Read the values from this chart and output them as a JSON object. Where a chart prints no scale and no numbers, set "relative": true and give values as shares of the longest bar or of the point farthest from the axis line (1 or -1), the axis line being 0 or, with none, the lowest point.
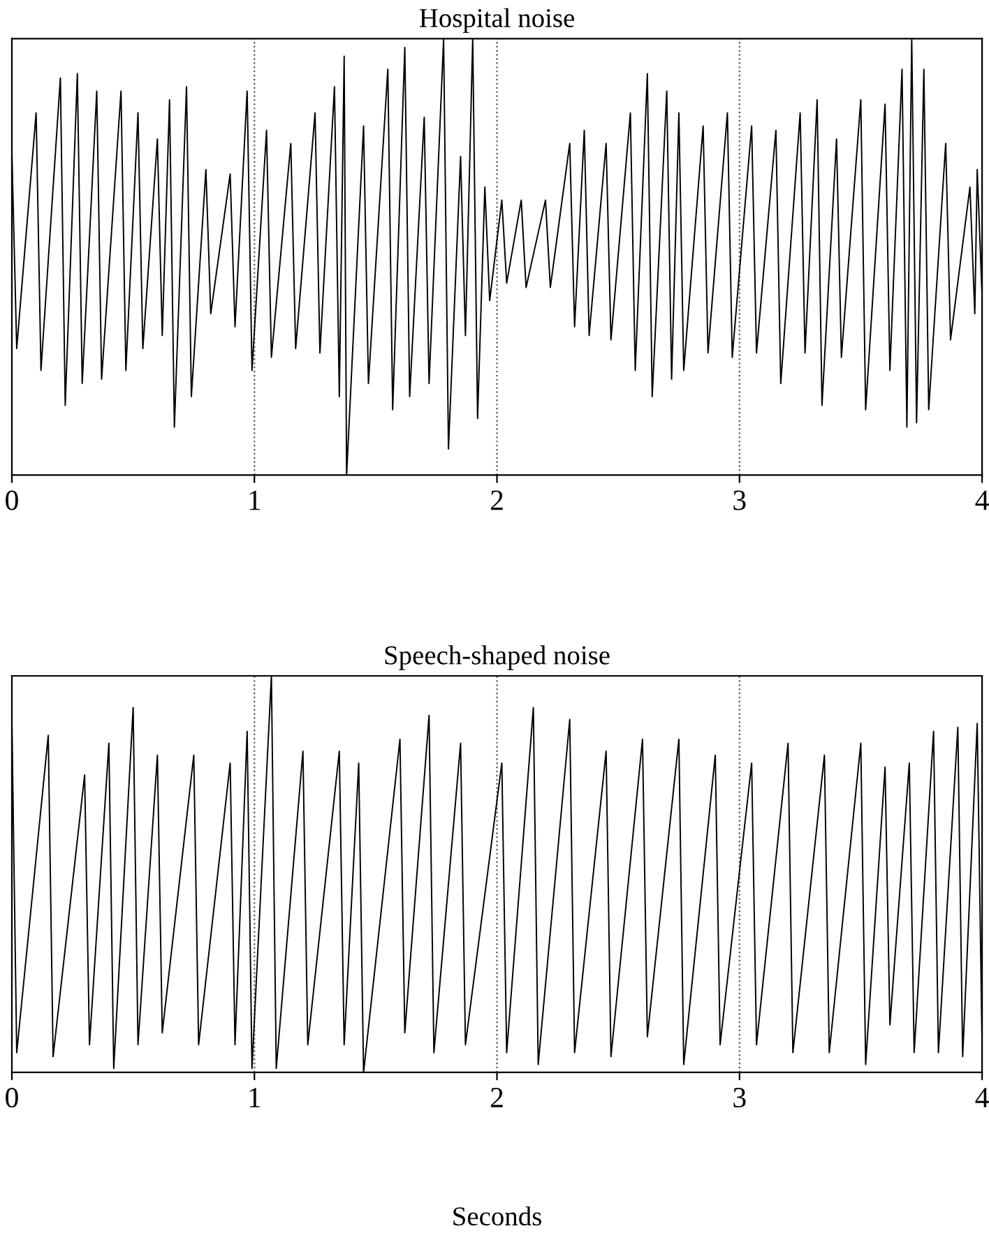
{
  "chart_data": [
    {
      "type": "line",
      "title": "Hospital noise",
      "relative": true,
      "xlim": [
        0,
        4
      ],
      "xticks": [
        0,
        1,
        2,
        3,
        4
      ],
      "grid": false,
      "tick_labels": "x",
      "line_style": "solid",
      "ref_lines": [
        {
          "axis": "x",
          "value": 1,
          "line_style": "dotted"
        },
        {
          "axis": "x",
          "value": 2,
          "line_style": "dotted"
        },
        {
          "axis": "x",
          "value": 3,
          "line_style": "dotted"
        }
      ],
      "series": [
        {
          "color": "#000000",
          "x": [
            0.0,
            0.02,
            0.1,
            0.12,
            0.2,
            0.22,
            0.27,
            0.29,
            0.35,
            0.37,
            0.45,
            0.47,
            0.52,
            0.54,
            0.6,
            0.62,
            0.65,
            0.67,
            0.72,
            0.74,
            0.8,
            0.82,
            0.9,
            0.92,
            0.97,
            0.99,
            1.05,
            1.07,
            1.15,
            1.17,
            1.25,
            1.27,
            1.33,
            1.35,
            1.37,
            1.38,
            1.45,
            1.47,
            1.55,
            1.57,
            1.62,
            1.64,
            1.7,
            1.72,
            1.78,
            1.8,
            1.85,
            1.87,
            1.9,
            1.92,
            1.95,
            1.97,
            2.02,
            2.04,
            2.1,
            2.12,
            2.2,
            2.22,
            2.3,
            2.32,
            2.36,
            2.38,
            2.45,
            2.47,
            2.55,
            2.57,
            2.62,
            2.64,
            2.7,
            2.72,
            2.75,
            2.77,
            2.85,
            2.87,
            2.95,
            2.97,
            3.05,
            3.07,
            3.15,
            3.17,
            3.25,
            3.27,
            3.32,
            3.34,
            3.4,
            3.42,
            3.5,
            3.52,
            3.6,
            3.62,
            3.67,
            3.69,
            3.71,
            3.73,
            3.76,
            3.78,
            3.85,
            3.87,
            3.95,
            3.97,
            3.98,
            4.0
          ],
          "values": [
            0.74,
            0.29,
            0.83,
            0.24,
            0.91,
            0.16,
            0.92,
            0.21,
            0.88,
            0.22,
            0.88,
            0.24,
            0.83,
            0.29,
            0.77,
            0.32,
            0.86,
            0.11,
            0.89,
            0.18,
            0.7,
            0.37,
            0.69,
            0.34,
            0.88,
            0.24,
            0.79,
            0.27,
            0.76,
            0.29,
            0.83,
            0.28,
            0.89,
            0.18,
            0.96,
            0.0,
            0.8,
            0.21,
            0.93,
            0.15,
            0.98,
            0.18,
            0.82,
            0.21,
            1.0,
            0.06,
            0.73,
            0.32,
            1.0,
            0.13,
            0.66,
            0.4,
            0.63,
            0.44,
            0.63,
            0.43,
            0.63,
            0.43,
            0.76,
            0.34,
            0.79,
            0.32,
            0.76,
            0.31,
            0.83,
            0.24,
            0.92,
            0.18,
            0.88,
            0.22,
            0.83,
            0.24,
            0.8,
            0.28,
            0.83,
            0.27,
            0.8,
            0.28,
            0.79,
            0.21,
            0.83,
            0.28,
            0.86,
            0.16,
            0.77,
            0.27,
            0.86,
            0.15,
            0.85,
            0.24,
            0.93,
            0.11,
            1.0,
            0.12,
            0.93,
            0.15,
            0.76,
            0.31,
            0.66,
            0.37,
            0.7,
            0.41
          ]
        }
      ]
    },
    {
      "type": "line",
      "title": "Speech-shaped noise",
      "xlabel": "Seconds",
      "relative": true,
      "xlim": [
        0,
        4
      ],
      "xticks": [
        0,
        1,
        2,
        3,
        4
      ],
      "grid": false,
      "tick_labels": "x",
      "line_style": "solid",
      "ref_lines": [
        {
          "axis": "x",
          "value": 1,
          "line_style": "dotted"
        },
        {
          "axis": "x",
          "value": 2,
          "line_style": "dotted"
        },
        {
          "axis": "x",
          "value": 3,
          "line_style": "dotted"
        }
      ],
      "series": [
        {
          "color": "#000000",
          "x": [
            0.0,
            0.02,
            0.15,
            0.17,
            0.3,
            0.32,
            0.4,
            0.42,
            0.5,
            0.52,
            0.6,
            0.62,
            0.75,
            0.77,
            0.9,
            0.92,
            0.97,
            0.99,
            1.07,
            1.09,
            1.2,
            1.22,
            1.35,
            1.37,
            1.43,
            1.45,
            1.6,
            1.62,
            1.72,
            1.74,
            1.85,
            1.87,
            2.02,
            2.04,
            2.15,
            2.17,
            2.3,
            2.32,
            2.45,
            2.47,
            2.6,
            2.62,
            2.75,
            2.77,
            2.9,
            2.92,
            3.05,
            3.07,
            3.2,
            3.22,
            3.35,
            3.37,
            3.5,
            3.52,
            3.6,
            3.62,
            3.7,
            3.72,
            3.8,
            3.82,
            3.9,
            3.92,
            3.98,
            4.0
          ],
          "values": [
            0.89,
            0.05,
            0.85,
            0.04,
            0.75,
            0.07,
            0.83,
            0.01,
            0.92,
            0.07,
            0.8,
            0.1,
            0.8,
            0.07,
            0.78,
            0.07,
            0.86,
            0.01,
            1.0,
            0.01,
            0.81,
            0.07,
            0.81,
            0.07,
            0.78,
            0.0,
            0.84,
            0.1,
            0.9,
            0.05,
            0.83,
            0.07,
            0.78,
            0.05,
            0.92,
            0.02,
            0.89,
            0.05,
            0.81,
            0.04,
            0.84,
            0.09,
            0.84,
            0.02,
            0.8,
            0.07,
            0.78,
            0.07,
            0.83,
            0.05,
            0.8,
            0.05,
            0.83,
            0.02,
            0.77,
            0.12,
            0.78,
            0.05,
            0.86,
            0.05,
            0.87,
            0.04,
            0.88,
            0.07
          ]
        }
      ]
    }
  ]
}
